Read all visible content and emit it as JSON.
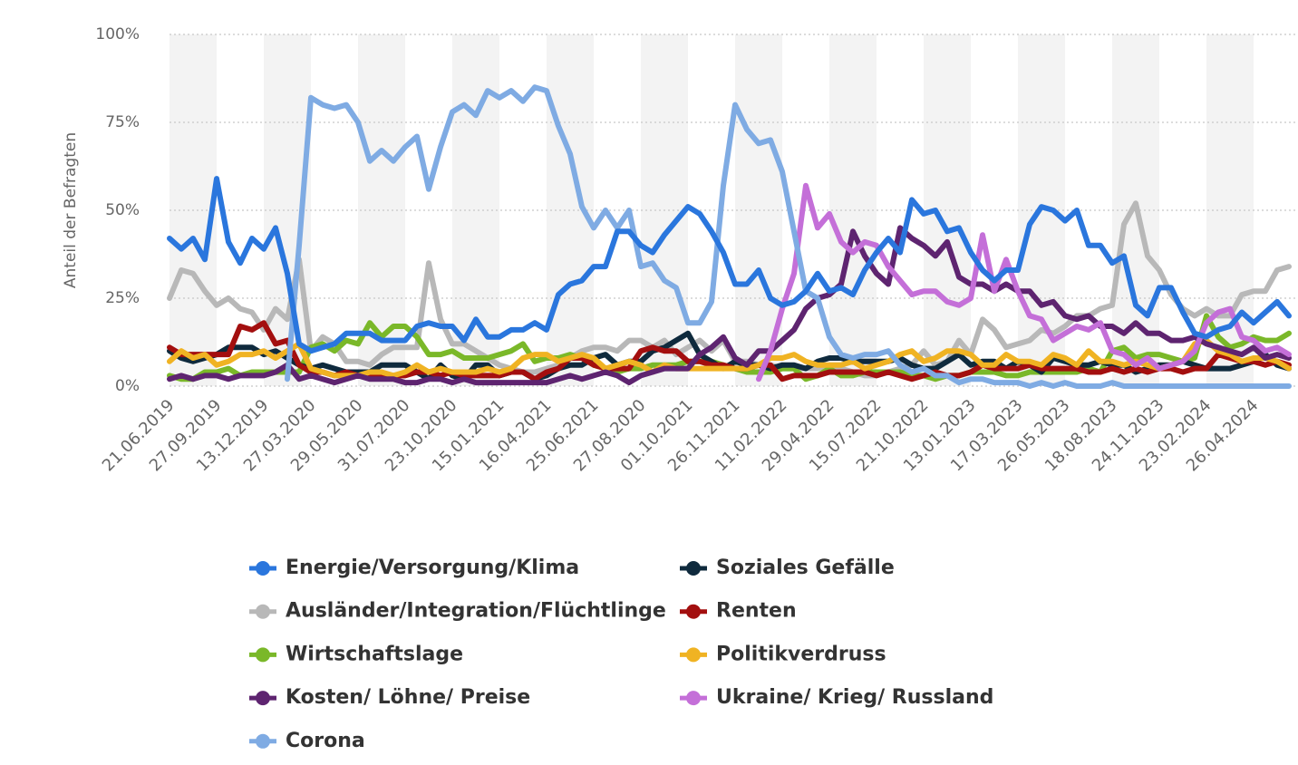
{
  "chart_data": {
    "type": "line",
    "y_label": "Anteil der Befragten",
    "categories": [
      "21.06.2019",
      null,
      null,
      null,
      "27.09.2019",
      null,
      null,
      null,
      "13.12.2019",
      null,
      null,
      null,
      "27.03.2020",
      null,
      null,
      null,
      "29.05.2020",
      null,
      null,
      null,
      "31.07.2020",
      null,
      null,
      null,
      "23.10.2020",
      null,
      null,
      null,
      "15.01.2021",
      null,
      null,
      null,
      "16.04.2021",
      null,
      null,
      null,
      "25.06.2021",
      null,
      null,
      null,
      "27.08.2020",
      null,
      null,
      null,
      "01.10.2021",
      null,
      null,
      null,
      "26.11.2021",
      null,
      null,
      null,
      "11.02.2022",
      null,
      null,
      null,
      "29.04.2022",
      null,
      null,
      null,
      "15.07.2022",
      null,
      null,
      null,
      "21.10.2022",
      null,
      null,
      null,
      "13.01.2023",
      null,
      null,
      null,
      "17.03.2023",
      null,
      null,
      null,
      "26.05.2023",
      null,
      null,
      null,
      "18.08.2023",
      null,
      null,
      null,
      "24.11.2023",
      null,
      null,
      null,
      "23.02.2024",
      null,
      null,
      null,
      "26.04.2024",
      null,
      null,
      null
    ],
    "ylim": [
      0,
      100
    ],
    "yticks": [
      {
        "value": 0,
        "label": "0%"
      },
      {
        "value": 25,
        "label": "25%"
      },
      {
        "value": 50,
        "label": "50%"
      },
      {
        "value": 75,
        "label": "75%"
      },
      {
        "value": 100,
        "label": "100%"
      }
    ],
    "grid": true,
    "series": [
      {
        "name": "Energie/Versorgung/Klima",
        "color": "#2a76dd",
        "values": [
          42,
          39,
          42,
          36,
          59,
          41,
          35,
          42,
          39,
          45,
          32,
          12,
          10,
          11,
          12,
          15,
          15,
          15,
          13,
          13,
          13,
          17,
          18,
          17,
          17,
          13,
          19,
          14,
          14,
          16,
          16,
          18,
          16,
          26,
          29,
          30,
          34,
          34,
          44,
          44,
          40,
          38,
          43,
          47,
          51,
          49,
          44,
          38,
          29,
          29,
          33,
          25,
          23,
          24,
          27,
          32,
          27,
          28,
          26,
          33,
          38,
          42,
          38,
          53,
          49,
          50,
          44,
          45,
          38,
          33,
          30,
          33,
          33,
          46,
          51,
          50,
          47,
          50,
          40,
          40,
          35,
          37,
          23,
          20,
          28,
          28,
          21,
          15,
          14,
          16,
          17,
          21,
          18,
          21,
          24,
          20
        ]
      },
      {
        "name": "Soziales Gefälle",
        "color": "#0f2a3d",
        "values": [
          10,
          8,
          7,
          8,
          9,
          11,
          11,
          11,
          9,
          10,
          8,
          6,
          5,
          6,
          5,
          4,
          4,
          4,
          6,
          6,
          6,
          4,
          2,
          6,
          3,
          2,
          6,
          6,
          3,
          4,
          4,
          2,
          3,
          5,
          6,
          6,
          8,
          9,
          6,
          7,
          7,
          10,
          11,
          13,
          15,
          9,
          7,
          5,
          7,
          6,
          6,
          5,
          6,
          6,
          5,
          7,
          8,
          8,
          7,
          7,
          7,
          7,
          8,
          6,
          5,
          5,
          7,
          9,
          6,
          7,
          7,
          5,
          7,
          6,
          4,
          8,
          7,
          6,
          6,
          7,
          6,
          6,
          4,
          5,
          6,
          6,
          7,
          6,
          5,
          5,
          5,
          6,
          7,
          9,
          6,
          5
        ]
      },
      {
        "name": "Ausländer/Integration/Flüchtlinge",
        "color": "#b8b8b8",
        "values": [
          25,
          33,
          32,
          27,
          23,
          25,
          22,
          21,
          16,
          22,
          19,
          36,
          10,
          14,
          12,
          7,
          7,
          6,
          9,
          11,
          11,
          11,
          35,
          19,
          12,
          12,
          10,
          8,
          6,
          5,
          4,
          4,
          5,
          6,
          8,
          10,
          11,
          11,
          10,
          13,
          13,
          11,
          13,
          9,
          11,
          13,
          10,
          13,
          7,
          7,
          6,
          6,
          5,
          5,
          5,
          5,
          6,
          5,
          4,
          3,
          3,
          4,
          5,
          6,
          10,
          6,
          7,
          13,
          9,
          19,
          16,
          11,
          12,
          13,
          16,
          15,
          17,
          20,
          20,
          22,
          23,
          46,
          52,
          37,
          33,
          26,
          22,
          20,
          22,
          20,
          20,
          26,
          27,
          27,
          33,
          34
        ]
      },
      {
        "name": "Renten",
        "color": "#a30f0f",
        "values": [
          11,
          9,
          9,
          9,
          9,
          9,
          17,
          16,
          18,
          12,
          13,
          6,
          4,
          4,
          3,
          4,
          3,
          3,
          3,
          3,
          3,
          4,
          4,
          3,
          4,
          3,
          3,
          3,
          3,
          4,
          4,
          2,
          4,
          5,
          8,
          8,
          6,
          5,
          5,
          5,
          10,
          11,
          10,
          10,
          7,
          7,
          6,
          6,
          5,
          5,
          6,
          6,
          2,
          3,
          3,
          3,
          4,
          4,
          4,
          4,
          3,
          4,
          3,
          2,
          3,
          4,
          3,
          3,
          4,
          6,
          5,
          5,
          5,
          6,
          5,
          5,
          5,
          5,
          4,
          4,
          5,
          4,
          5,
          4,
          5,
          5,
          4,
          5,
          5,
          9,
          8,
          7,
          7,
          6,
          7,
          6
        ]
      },
      {
        "name": "Wirtschaftslage",
        "color": "#7ab829",
        "values": [
          3,
          2,
          2,
          4,
          4,
          5,
          3,
          4,
          4,
          4,
          4,
          4,
          11,
          12,
          10,
          13,
          12,
          18,
          14,
          17,
          17,
          14,
          9,
          9,
          10,
          8,
          8,
          8,
          9,
          10,
          12,
          7,
          8,
          8,
          9,
          8,
          6,
          5,
          4,
          5,
          5,
          6,
          6,
          6,
          7,
          7,
          7,
          6,
          5,
          4,
          4,
          4,
          5,
          5,
          2,
          3,
          5,
          3,
          3,
          4,
          4,
          4,
          4,
          3,
          3,
          2,
          3,
          3,
          4,
          4,
          4,
          3,
          3,
          4,
          4,
          4,
          4,
          4,
          5,
          4,
          10,
          11,
          8,
          9,
          9,
          8,
          7,
          8,
          20,
          14,
          11,
          12,
          14,
          13,
          13,
          15
        ]
      },
      {
        "name": "Politikverdruss",
        "color": "#f0b323",
        "values": [
          7,
          10,
          8,
          9,
          6,
          7,
          9,
          9,
          10,
          8,
          10,
          12,
          5,
          4,
          3,
          3,
          3,
          4,
          4,
          3,
          4,
          6,
          4,
          5,
          4,
          4,
          4,
          5,
          4,
          5,
          8,
          9,
          9,
          7,
          8,
          9,
          8,
          5,
          6,
          7,
          6,
          4,
          6,
          5,
          5,
          5,
          5,
          5,
          5,
          5,
          6,
          8,
          8,
          9,
          7,
          6,
          6,
          6,
          7,
          5,
          6,
          7,
          9,
          10,
          7,
          8,
          10,
          10,
          9,
          6,
          6,
          9,
          7,
          7,
          6,
          9,
          8,
          6,
          10,
          7,
          7,
          6,
          7,
          6,
          5,
          6,
          7,
          12,
          13,
          10,
          9,
          7,
          8,
          8,
          7,
          5
        ]
      },
      {
        "name": "Kosten/ Löhne/ Preise",
        "color": "#5e2470",
        "values": [
          2,
          3,
          2,
          3,
          3,
          2,
          3,
          3,
          3,
          4,
          6,
          2,
          3,
          2,
          1,
          2,
          3,
          2,
          2,
          2,
          1,
          1,
          2,
          2,
          1,
          2,
          1,
          1,
          1,
          1,
          1,
          1,
          1,
          2,
          3,
          2,
          3,
          4,
          3,
          1,
          3,
          4,
          5,
          5,
          5,
          9,
          11,
          14,
          8,
          6,
          10,
          10,
          13,
          16,
          22,
          25,
          26,
          29,
          44,
          37,
          32,
          29,
          45,
          42,
          40,
          37,
          41,
          31,
          29,
          29,
          27,
          29,
          27,
          27,
          23,
          24,
          20,
          19,
          20,
          17,
          17,
          15,
          18,
          15,
          15,
          13,
          13,
          14,
          12,
          11,
          10,
          9,
          11,
          8,
          9,
          8
        ]
      },
      {
        "name": "Ukraine/ Krieg/ Russland",
        "color": "#c46fd8",
        "values": [
          null,
          null,
          null,
          null,
          null,
          null,
          null,
          null,
          null,
          null,
          null,
          null,
          null,
          null,
          null,
          null,
          null,
          null,
          null,
          null,
          null,
          null,
          null,
          null,
          null,
          null,
          null,
          null,
          null,
          null,
          null,
          null,
          null,
          null,
          null,
          null,
          null,
          null,
          null,
          null,
          null,
          null,
          null,
          null,
          null,
          null,
          null,
          null,
          null,
          null,
          2,
          10,
          22,
          32,
          57,
          45,
          49,
          41,
          38,
          41,
          40,
          34,
          30,
          26,
          27,
          27,
          24,
          23,
          25,
          43,
          27,
          36,
          27,
          20,
          19,
          13,
          15,
          17,
          16,
          18,
          10,
          9,
          6,
          8,
          5,
          6,
          7,
          10,
          18,
          21,
          22,
          14,
          13,
          10,
          11,
          9
        ]
      },
      {
        "name": "Corona",
        "color": "#7fabe3",
        "values": [
          null,
          null,
          null,
          null,
          null,
          null,
          null,
          null,
          null,
          null,
          2,
          40,
          82,
          80,
          79,
          80,
          75,
          64,
          67,
          64,
          68,
          71,
          56,
          68,
          78,
          80,
          77,
          84,
          82,
          84,
          81,
          85,
          84,
          74,
          66,
          51,
          45,
          50,
          45,
          50,
          34,
          35,
          30,
          28,
          18,
          18,
          24,
          57,
          80,
          73,
          69,
          70,
          61,
          44,
          27,
          25,
          14,
          9,
          8,
          9,
          9,
          10,
          6,
          4,
          5,
          3,
          3,
          1,
          2,
          2,
          1,
          1,
          1,
          0,
          1,
          0,
          1,
          0,
          0,
          0,
          1,
          0,
          0,
          0,
          0,
          0,
          0,
          0,
          0,
          0,
          0,
          0,
          0,
          0,
          0,
          0
        ]
      }
    ]
  }
}
